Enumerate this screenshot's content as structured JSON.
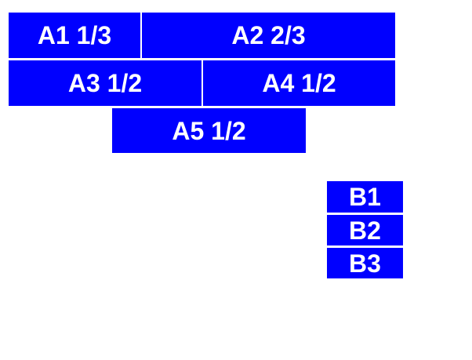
{
  "colors": {
    "page_bg": "#ffffff",
    "block_bg": "#0000ff",
    "block_text": "#ffffff"
  },
  "blocks_a": [
    {
      "label": "A1 1/3"
    },
    {
      "label": "A2 2/3"
    },
    {
      "label": "A3 1/2"
    },
    {
      "label": "A4 1/2"
    },
    {
      "label": "A5 1/2"
    }
  ],
  "blocks_b": [
    {
      "label": "B1"
    },
    {
      "label": "B2"
    },
    {
      "label": "B3"
    }
  ]
}
